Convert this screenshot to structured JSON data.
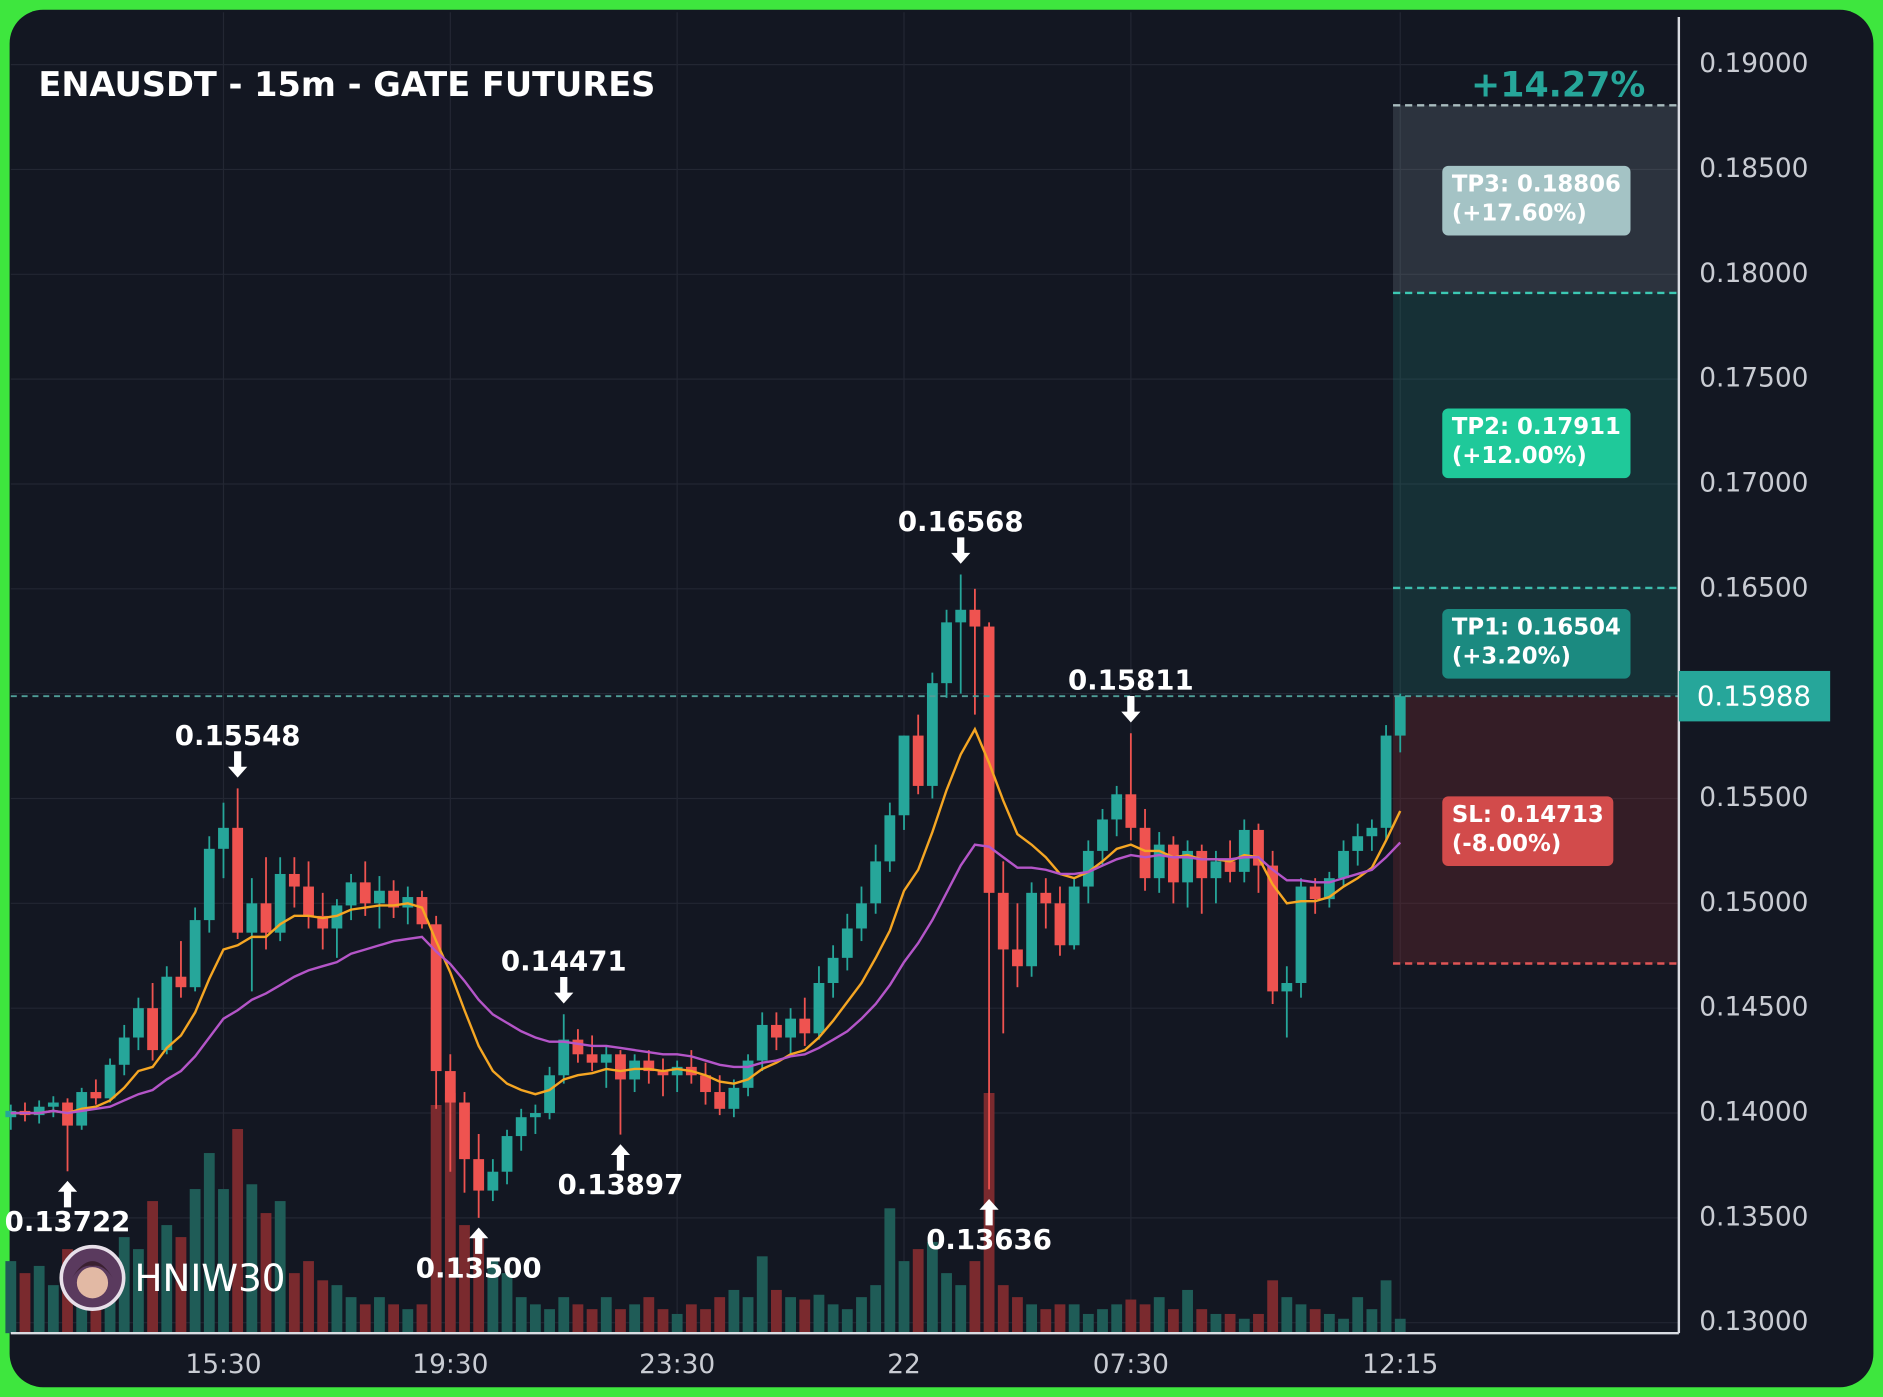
{
  "chart_data": {
    "type": "candlestick",
    "title": "ENAUSDT - 15m - GATE FUTURES",
    "categories": [
      null,
      null,
      null,
      null,
      null,
      null,
      null,
      null,
      null,
      null,
      null,
      null,
      null,
      null,
      null,
      "15:30",
      null,
      null,
      null,
      null,
      null,
      null,
      null,
      null,
      null,
      null,
      null,
      null,
      null,
      null,
      null,
      "19:30",
      null,
      null,
      null,
      null,
      null,
      null,
      null,
      null,
      null,
      null,
      null,
      null,
      null,
      null,
      null,
      "23:30",
      null,
      null,
      null,
      null,
      null,
      null,
      null,
      null,
      null,
      null,
      null,
      null,
      null,
      null,
      null,
      "22",
      null,
      null,
      null,
      null,
      null,
      null,
      null,
      null,
      null,
      null,
      null,
      null,
      null,
      null,
      null,
      "07:30",
      null,
      null,
      null,
      null,
      null,
      null,
      null,
      null,
      null,
      null,
      null,
      null,
      null,
      null,
      null,
      null,
      null,
      null,
      "12:15"
    ],
    "open": [
      0.1398,
      0.1401,
      0.1399,
      0.1403,
      0.1405,
      0.1394,
      0.141,
      0.1407,
      0.1423,
      0.1436,
      0.145,
      0.143,
      0.1465,
      0.146,
      0.1492,
      0.1526,
      0.1536,
      0.1486,
      0.15,
      0.1486,
      0.1514,
      0.1508,
      0.1494,
      0.1488,
      0.1499,
      0.151,
      0.15,
      0.1506,
      0.1498,
      0.1503,
      0.149,
      0.142,
      0.1405,
      0.1378,
      0.1363,
      0.1372,
      0.1389,
      0.1398,
      0.14,
      0.1418,
      0.1435,
      0.1428,
      0.1424,
      0.1428,
      0.1416,
      0.1425,
      0.142,
      0.1418,
      0.1422,
      0.1418,
      0.141,
      0.1402,
      0.1412,
      0.1425,
      0.1442,
      0.1436,
      0.1445,
      0.1438,
      0.1462,
      0.1474,
      0.1488,
      0.15,
      0.152,
      0.1542,
      0.158,
      0.1556,
      0.1605,
      0.1634,
      0.164,
      0.1632,
      0.1505,
      0.1478,
      0.147,
      0.1505,
      0.15,
      0.148,
      0.1508,
      0.1525,
      0.154,
      0.1552,
      0.1536,
      0.1512,
      0.1528,
      0.151,
      0.1525,
      0.1512,
      0.152,
      0.1515,
      0.1535,
      0.1518,
      0.1458,
      0.1462,
      0.1508,
      0.1502,
      0.1512,
      0.1525,
      0.1532,
      0.1536,
      0.158
    ],
    "high": [
      0.1404,
      0.1405,
      0.1406,
      0.1408,
      0.1407,
      0.1412,
      0.1416,
      0.1426,
      0.1442,
      0.1455,
      0.1462,
      0.147,
      0.1482,
      0.1498,
      0.1532,
      0.1548,
      0.15548,
      0.1512,
      0.1522,
      0.1522,
      0.1522,
      0.152,
      0.1505,
      0.1502,
      0.1514,
      0.152,
      0.1513,
      0.1511,
      0.1508,
      0.1506,
      0.1494,
      0.1428,
      0.141,
      0.139,
      0.1378,
      0.1392,
      0.1402,
      0.1404,
      0.1422,
      0.14471,
      0.144,
      0.1437,
      0.1432,
      0.143,
      0.1428,
      0.143,
      0.1426,
      0.1425,
      0.143,
      0.1424,
      0.1418,
      0.1416,
      0.1428,
      0.1448,
      0.1448,
      0.145,
      0.1455,
      0.147,
      0.148,
      0.1495,
      0.1508,
      0.1528,
      0.1548,
      0.158,
      0.159,
      0.161,
      0.164,
      0.16568,
      0.165,
      0.1634,
      0.152,
      0.15,
      0.151,
      0.1512,
      0.1508,
      0.1512,
      0.153,
      0.1545,
      0.1556,
      0.15811,
      0.1545,
      0.1534,
      0.1532,
      0.153,
      0.1528,
      0.1525,
      0.153,
      0.154,
      0.1538,
      0.1525,
      0.147,
      0.1512,
      0.1512,
      0.1515,
      0.153,
      0.1538,
      0.154,
      0.1585,
      0.16
    ],
    "low": [
      0.1392,
      0.1396,
      0.1395,
      0.1398,
      0.13722,
      0.1392,
      0.1404,
      0.1405,
      0.1418,
      0.143,
      0.1425,
      0.1428,
      0.1455,
      0.1458,
      0.1486,
      0.1512,
      0.1483,
      0.1458,
      0.1478,
      0.1482,
      0.1498,
      0.1488,
      0.1478,
      0.1474,
      0.1492,
      0.1494,
      0.1488,
      0.1493,
      0.149,
      0.1488,
      0.1402,
      0.1372,
      0.1362,
      0.135,
      0.1358,
      0.1366,
      0.1382,
      0.139,
      0.1397,
      0.1414,
      0.1424,
      0.142,
      0.1412,
      0.13897,
      0.141,
      0.1414,
      0.1408,
      0.141,
      0.1414,
      0.1404,
      0.1399,
      0.1398,
      0.1408,
      0.142,
      0.143,
      0.1428,
      0.1432,
      0.1435,
      0.1455,
      0.1468,
      0.1482,
      0.1495,
      0.1515,
      0.1535,
      0.1552,
      0.155,
      0.1598,
      0.16,
      0.159,
      0.13636,
      0.1438,
      0.146,
      0.1465,
      0.1488,
      0.1475,
      0.1478,
      0.15,
      0.1518,
      0.1532,
      0.153,
      0.1506,
      0.1505,
      0.15,
      0.1498,
      0.1495,
      0.15,
      0.151,
      0.151,
      0.1505,
      0.1452,
      0.1436,
      0.1455,
      0.1495,
      0.1498,
      0.1508,
      0.1518,
      0.1525,
      0.153,
      0.1572
    ],
    "close": [
      0.1401,
      0.1399,
      0.1403,
      0.1405,
      0.1394,
      0.141,
      0.1407,
      0.1423,
      0.1436,
      0.145,
      0.143,
      0.1465,
      0.146,
      0.1492,
      0.1526,
      0.1536,
      0.1486,
      0.15,
      0.1486,
      0.1514,
      0.1508,
      0.1494,
      0.1488,
      0.1499,
      0.151,
      0.15,
      0.1506,
      0.1498,
      0.1503,
      0.149,
      0.142,
      0.1405,
      0.1378,
      0.1363,
      0.1372,
      0.1389,
      0.1398,
      0.14,
      0.1418,
      0.1435,
      0.1428,
      0.1424,
      0.1428,
      0.1416,
      0.1425,
      0.142,
      0.1418,
      0.1422,
      0.1418,
      0.141,
      0.1402,
      0.1412,
      0.1425,
      0.1442,
      0.1436,
      0.1445,
      0.1438,
      0.1462,
      0.1474,
      0.1488,
      0.15,
      0.152,
      0.1542,
      0.158,
      0.1556,
      0.1605,
      0.1634,
      0.164,
      0.1632,
      0.1505,
      0.1478,
      0.147,
      0.1505,
      0.15,
      0.148,
      0.1508,
      0.1525,
      0.154,
      0.1552,
      0.1536,
      0.1512,
      0.1528,
      0.151,
      0.1525,
      0.1512,
      0.152,
      0.1515,
      0.1535,
      0.1518,
      0.1458,
      0.1462,
      0.1508,
      0.1502,
      0.1512,
      0.1525,
      0.1532,
      0.1536,
      0.158,
      0.15988
    ],
    "up_color": "#26a69a",
    "down_color": "#ef5350",
    "volume": {
      "up_color": "#1f5c57",
      "down_color": "#7a2a2e",
      "values": [
        30,
        25,
        28,
        20,
        35,
        30,
        22,
        25,
        40,
        35,
        55,
        45,
        40,
        60,
        75,
        60,
        85,
        62,
        50,
        55,
        25,
        30,
        22,
        20,
        15,
        12,
        15,
        12,
        10,
        12,
        95,
        100,
        45,
        40,
        30,
        25,
        15,
        12,
        10,
        15,
        12,
        10,
        15,
        10,
        12,
        15,
        10,
        8,
        12,
        10,
        15,
        18,
        15,
        32,
        18,
        15,
        14,
        16,
        12,
        10,
        15,
        20,
        52,
        30,
        35,
        38,
        25,
        20,
        30,
        100,
        20,
        15,
        12,
        10,
        12,
        12,
        8,
        10,
        12,
        14,
        12,
        15,
        10,
        18,
        10,
        8,
        8,
        6,
        8,
        22,
        15,
        12,
        10,
        8,
        6,
        15,
        10,
        22,
        6
      ]
    },
    "moving_averages": [
      {
        "color": "#f5a623",
        "values": [
          0.14,
          0.14,
          0.14,
          0.1401,
          0.14,
          0.1402,
          0.1403,
          0.1406,
          0.1412,
          0.142,
          0.1422,
          0.1431,
          0.1437,
          0.1448,
          0.1464,
          0.1478,
          0.148,
          0.1484,
          0.1484,
          0.149,
          0.1494,
          0.1494,
          0.1493,
          0.1494,
          0.1497,
          0.1498,
          0.1499,
          0.1499,
          0.15,
          0.1498,
          0.1482,
          0.1467,
          0.1449,
          0.1432,
          0.142,
          0.1414,
          0.1411,
          0.1409,
          0.1411,
          0.1416,
          0.1418,
          0.1419,
          0.1421,
          0.142,
          0.1421,
          0.1421,
          0.142,
          0.1421,
          0.142,
          0.1418,
          0.1415,
          0.1414,
          0.1416,
          0.1421,
          0.1424,
          0.1428,
          0.143,
          0.1436,
          0.1444,
          0.1453,
          0.1462,
          0.1474,
          0.1487,
          0.1506,
          0.1516,
          0.1534,
          0.1554,
          0.1571,
          0.1583,
          0.1567,
          0.1549,
          0.1533,
          0.1528,
          0.1522,
          0.1514,
          0.1512,
          0.1515,
          0.152,
          0.1526,
          0.1528,
          0.1525,
          0.1525,
          0.1522,
          0.1523,
          0.1521,
          0.1521,
          0.152,
          0.1523,
          0.1522,
          0.1509,
          0.15,
          0.1501,
          0.1501,
          0.1503,
          0.1508,
          0.1512,
          0.1517,
          0.153,
          0.1544
        ]
      },
      {
        "color": "#b455c8",
        "values": [
          0.14,
          0.14,
          0.14,
          0.1401,
          0.14,
          0.1401,
          0.1402,
          0.1403,
          0.1406,
          0.1409,
          0.1411,
          0.1416,
          0.142,
          0.1427,
          0.1436,
          0.1445,
          0.1449,
          0.1454,
          0.1457,
          0.1461,
          0.1465,
          0.1468,
          0.147,
          0.1472,
          0.1476,
          0.1478,
          0.148,
          0.1482,
          0.1483,
          0.1484,
          0.1477,
          0.1471,
          0.1463,
          0.1454,
          0.1447,
          0.1443,
          0.1439,
          0.1436,
          0.1434,
          0.1434,
          0.1433,
          0.1432,
          0.1432,
          0.1431,
          0.143,
          0.1429,
          0.1428,
          0.1428,
          0.1427,
          0.1425,
          0.1423,
          0.1422,
          0.1422,
          0.1424,
          0.1425,
          0.1427,
          0.1428,
          0.1431,
          0.1435,
          0.1439,
          0.1445,
          0.1452,
          0.1461,
          0.1472,
          0.1481,
          0.1492,
          0.1505,
          0.1518,
          0.1528,
          0.1527,
          0.1522,
          0.1517,
          0.1517,
          0.1516,
          0.1514,
          0.1514,
          0.1515,
          0.1518,
          0.1521,
          0.1523,
          0.1522,
          0.1523,
          0.1522,
          0.1522,
          0.1521,
          0.1521,
          0.1521,
          0.1522,
          0.1522,
          0.1516,
          0.1511,
          0.1511,
          0.151,
          0.151,
          0.1512,
          0.1514,
          0.1516,
          0.1522,
          0.1529
        ]
      }
    ],
    "ylim": [
      0.1295,
      0.1925
    ],
    "yticks": [
      {
        "value": 0.13,
        "label": "0.13000"
      },
      {
        "value": 0.135,
        "label": "0.13500"
      },
      {
        "value": 0.14,
        "label": "0.14000"
      },
      {
        "value": 0.145,
        "label": "0.14500"
      },
      {
        "value": 0.15,
        "label": "0.15000"
      },
      {
        "value": 0.155,
        "label": "0.15500"
      },
      {
        "value": 0.16,
        "label": "0.16000"
      },
      {
        "value": 0.165,
        "label": "0.16500"
      },
      {
        "value": 0.17,
        "label": "0.17000"
      },
      {
        "value": 0.175,
        "label": "0.17500"
      },
      {
        "value": 0.18,
        "label": "0.18000"
      },
      {
        "value": 0.185,
        "label": "0.18500"
      },
      {
        "value": 0.19,
        "label": "0.19000"
      }
    ],
    "grid": true,
    "annotations": [
      {
        "index": 4,
        "value": 0.13722,
        "label": "0.13722",
        "side": "below"
      },
      {
        "index": 16,
        "value": 0.15548,
        "label": "0.15548",
        "side": "above"
      },
      {
        "index": 33,
        "value": 0.135,
        "label": "0.13500",
        "side": "below"
      },
      {
        "index": 39,
        "value": 0.14471,
        "label": "0.14471",
        "side": "above"
      },
      {
        "index": 43,
        "value": 0.13897,
        "label": "0.13897",
        "side": "below"
      },
      {
        "index": 67,
        "value": 0.16568,
        "label": "0.16568",
        "side": "above"
      },
      {
        "index": 69,
        "value": 0.13636,
        "label": "0.13636",
        "side": "below"
      },
      {
        "index": 79,
        "value": 0.15811,
        "label": "0.15811",
        "side": "above"
      }
    ],
    "levels": [
      {
        "value": 0.18806,
        "label": "TP3: 0.18806",
        "change": "(+17.60%)",
        "color": "#a4c3c5",
        "line_color": "#a9bcbf"
      },
      {
        "value": 0.17911,
        "label": "TP2: 0.17911",
        "change": "(+12.00%)",
        "color": "#1fc99a",
        "line_color": "#3cc9b4"
      },
      {
        "value": 0.16504,
        "label": "TP1: 0.16504",
        "change": "(+3.20%)",
        "color": "#1b8a80",
        "line_color": "#3cbcac"
      },
      {
        "value": 0.14713,
        "label": "SL: 0.14713",
        "change": "(-8.00%)",
        "color": "#d24b4b",
        "line_color": "#e05555"
      }
    ],
    "last_price": {
      "value": 0.15988,
      "label": "0.15988",
      "color": "#26a69a"
    },
    "change_label": "+14.27%",
    "change_color": "#26a69a",
    "watermark": "HNIW30"
  }
}
